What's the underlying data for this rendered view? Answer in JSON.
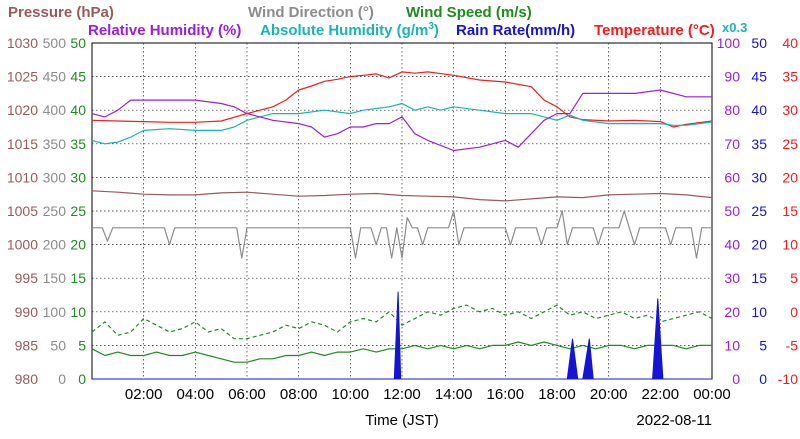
{
  "legend": {
    "row1": [
      {
        "text": "Pressure (hPa)",
        "color": "#9a5a5a"
      },
      {
        "text": "Wind Direction (°)",
        "color": "#8c8c8c"
      },
      {
        "text": "Wind Speed (m/s)",
        "color": "#1e8c1e"
      }
    ],
    "row2": [
      {
        "text": "Relative Humidity (%)",
        "color": "#9a1ee0"
      },
      {
        "text": "Absolute Humidity (g/m",
        "sup": "3",
        "tail": ")",
        "color": "#1ab4b4"
      },
      {
        "text": "Rain Rate(mm/h)",
        "color": "#1414d2"
      },
      {
        "text": "Temperature (°C)",
        "color": "#f01e1e"
      }
    ],
    "abs_multiplier": "x0.3"
  },
  "xlabel": "Time (JST)",
  "date": "2022-08-11",
  "chart_data": {
    "type": "line",
    "x_unit": "hours",
    "x_range": [
      0,
      24
    ],
    "x_ticks": [
      {
        "x": 2,
        "label": "02:00"
      },
      {
        "x": 4,
        "label": "04:00"
      },
      {
        "x": 6,
        "label": "06:00"
      },
      {
        "x": 8,
        "label": "08:00"
      },
      {
        "x": 10,
        "label": "10:00"
      },
      {
        "x": 12,
        "label": "12:00"
      },
      {
        "x": 14,
        "label": "14:00"
      },
      {
        "x": 16,
        "label": "16:00"
      },
      {
        "x": 18,
        "label": "18:00"
      },
      {
        "x": 20,
        "label": "20:00"
      },
      {
        "x": 22,
        "label": "22:00"
      },
      {
        "x": 24,
        "label": "00:00"
      }
    ],
    "axes": [
      {
        "name": "Pressure",
        "color": "#9a5a5a",
        "side": "left",
        "ticks": [
          "1030",
          "1025",
          "1020",
          "1015",
          "1010",
          "1005",
          "1000",
          "995",
          "990",
          "985",
          "980"
        ]
      },
      {
        "name": "Wind Direction",
        "color": "#8c8c8c",
        "side": "left",
        "ticks": [
          "500",
          "450",
          "400",
          "350",
          "300",
          "250",
          "200",
          "150",
          "100",
          "50",
          "0"
        ]
      },
      {
        "name": "Wind Speed",
        "color": "#1e8c1e",
        "side": "left",
        "ticks": [
          "50",
          "45",
          "40",
          "35",
          "30",
          "25",
          "20",
          "15",
          "10",
          "5",
          "0"
        ]
      },
      {
        "name": "Relative Humidity",
        "color": "#9a1ee0",
        "side": "right",
        "ticks": [
          "100",
          "90",
          "80",
          "70",
          "60",
          "50",
          "40",
          "30",
          "20",
          "10",
          "0"
        ]
      },
      {
        "name": "Rain Rate",
        "color": "#1414d2",
        "side": "right",
        "ticks": [
          "50",
          "45",
          "40",
          "35",
          "30",
          "25",
          "20",
          "15",
          "10",
          "5",
          "0"
        ]
      },
      {
        "name": "Temperature",
        "color": "#f01e1e",
        "side": "right",
        "ticks": [
          "40",
          "35",
          "30",
          "25",
          "20",
          "15",
          "10",
          "5",
          "0",
          "-5",
          "-10"
        ]
      }
    ],
    "series": [
      {
        "name": "Temperature",
        "unit": "°C",
        "color": "#f01e1e",
        "style": "solid",
        "axis": "Temperature",
        "x": [
          0,
          1,
          2,
          3,
          4,
          5,
          6,
          6.5,
          7,
          7.5,
          8,
          8.5,
          9,
          9.5,
          10,
          10.5,
          11,
          11.5,
          12,
          12.5,
          13,
          14,
          15,
          16,
          17,
          17.5,
          18,
          18.5,
          19,
          20,
          21,
          22,
          22.5,
          23,
          24
        ],
        "y": [
          28.5,
          28.4,
          28.3,
          28.2,
          28.2,
          28.4,
          29.5,
          30,
          30.5,
          31.5,
          33,
          33.6,
          34.3,
          34.6,
          35,
          35.2,
          35.4,
          34.8,
          35.7,
          35.5,
          35.7,
          35.2,
          34.5,
          34.2,
          33.5,
          31.5,
          30.5,
          29,
          28.6,
          28.4,
          28.5,
          28.3,
          27.5,
          27.9,
          28.4
        ]
      },
      {
        "name": "Absolute Humidity",
        "unit": "g/m3 x0.3",
        "color": "#1ab4b4",
        "style": "solid",
        "axis": "Relative Humidity",
        "x": [
          0,
          0.5,
          1,
          1.5,
          2,
          3,
          4,
          5,
          5.5,
          6,
          6.5,
          7,
          8,
          9,
          10,
          10.5,
          11,
          11.5,
          12,
          12.5,
          13,
          13.5,
          14,
          15,
          16,
          17,
          17.5,
          18,
          18.5,
          19,
          20,
          21,
          22,
          22.5,
          23,
          24
        ],
        "y": [
          71,
          70,
          70.5,
          72,
          74,
          74.5,
          74,
          74,
          75,
          77,
          78,
          79,
          79,
          80,
          79,
          80,
          80.5,
          81,
          82,
          80,
          81,
          80,
          81,
          80,
          79,
          79,
          78,
          77,
          78.5,
          77,
          76,
          76,
          76,
          75.5,
          75.5,
          76.5
        ]
      },
      {
        "name": "Relative Humidity",
        "unit": "%",
        "color": "#9a1ee0",
        "style": "solid",
        "axis": "Relative Humidity",
        "x": [
          0,
          0.5,
          1,
          1.5,
          2,
          3,
          4,
          5,
          5.5,
          6,
          7,
          8,
          8.5,
          9,
          9.5,
          10,
          10.5,
          11,
          11.5,
          12,
          12.5,
          13,
          14,
          15,
          16,
          16.5,
          17,
          17.5,
          18,
          18.5,
          19,
          20,
          21,
          22,
          23,
          24
        ],
        "y": [
          79,
          78,
          80,
          83,
          83,
          83,
          83,
          82,
          81,
          79,
          77,
          76,
          75,
          72,
          73,
          75,
          75,
          76,
          76,
          78,
          73,
          71,
          68,
          69,
          71,
          69,
          73,
          77,
          79,
          79,
          85,
          85,
          85,
          86,
          84,
          84
        ]
      },
      {
        "name": "Pressure",
        "unit": "hPa",
        "color": "#9a5a5a",
        "style": "solid",
        "axis": "Pressure",
        "x": [
          0,
          1,
          2,
          3,
          4,
          5,
          6,
          7,
          8,
          9,
          10,
          11,
          12,
          13,
          14,
          15,
          16,
          17,
          18,
          19,
          20,
          21,
          22,
          23,
          24
        ],
        "y": [
          1008,
          1007.8,
          1007.5,
          1007.4,
          1007.4,
          1007.7,
          1007.8,
          1007.5,
          1007.2,
          1007.3,
          1007.5,
          1007.6,
          1007.3,
          1007.2,
          1007.1,
          1006.7,
          1006.5,
          1006.8,
          1007.1,
          1007,
          1007.4,
          1007.5,
          1007.6,
          1007.4,
          1007
        ]
      },
      {
        "name": "Wind Direction",
        "unit": "°",
        "color": "#8c8c8c",
        "style": "solid",
        "axis": "Wind Direction",
        "x": [
          0,
          0.2,
          0.4,
          0.6,
          0.8,
          1,
          1.2,
          1.4,
          1.6,
          2,
          2.4,
          2.8,
          3,
          3.2,
          3.6,
          4,
          4.4,
          4.8,
          5,
          5.2,
          5.4,
          5.6,
          5.8,
          6,
          6.2,
          6.4,
          6.6,
          6.8,
          7,
          7.4,
          7.8,
          8,
          8.2,
          8.6,
          9,
          9.4,
          9.8,
          10,
          10.2,
          10.4,
          10.6,
          10.8,
          11,
          11.2,
          11.4,
          11.6,
          11.8,
          12,
          12.2,
          12.4,
          12.6,
          12.8,
          13,
          13.2,
          13.4,
          13.6,
          13.8,
          14,
          14.2,
          14.4,
          14.6,
          14.8,
          15,
          15.2,
          15.4,
          15.6,
          15.8,
          16,
          16.2,
          16.4,
          16.6,
          16.8,
          17,
          17.2,
          17.4,
          17.6,
          17.8,
          18,
          18.2,
          18.4,
          18.6,
          18.8,
          19,
          19.2,
          19.4,
          19.6,
          19.8,
          20,
          20.2,
          20.4,
          20.6,
          20.8,
          21,
          21.2,
          21.4,
          21.6,
          21.8,
          22,
          22.2,
          22.4,
          22.6,
          22.8,
          23,
          23.2,
          23.4,
          23.6,
          23.8,
          24
        ],
        "y": [
          225,
          225,
          225,
          205,
          225,
          225,
          225,
          225,
          225,
          225,
          225,
          225,
          200,
          225,
          225,
          225,
          225,
          225,
          225,
          225,
          225,
          225,
          180,
          225,
          225,
          225,
          225,
          225,
          225,
          225,
          225,
          225,
          225,
          225,
          225,
          225,
          225,
          225,
          180,
          225,
          225,
          225,
          200,
          225,
          225,
          180,
          225,
          180,
          240,
          225,
          225,
          200,
          225,
          225,
          225,
          225,
          225,
          250,
          200,
          225,
          225,
          225,
          225,
          225,
          225,
          225,
          225,
          225,
          200,
          225,
          225,
          225,
          225,
          225,
          200,
          225,
          225,
          225,
          250,
          200,
          225,
          225,
          225,
          225,
          225,
          200,
          225,
          225,
          225,
          225,
          250,
          225,
          200,
          225,
          225,
          225,
          225,
          225,
          225,
          200,
          225,
          225,
          225,
          225,
          180,
          225,
          225,
          225
        ]
      },
      {
        "name": "Wind Speed (gust)",
        "unit": "m/s",
        "color": "#1e8c1e",
        "style": "dashed",
        "axis": "Wind Speed",
        "x": [
          0,
          0.5,
          1,
          1.5,
          2,
          2.5,
          3,
          3.5,
          4,
          4.5,
          5,
          5.5,
          6,
          6.5,
          7,
          7.5,
          8,
          8.5,
          9,
          9.5,
          10,
          10.5,
          11,
          11.5,
          12,
          12.5,
          13,
          13.5,
          14,
          14.5,
          15,
          15.5,
          16,
          16.5,
          17,
          17.5,
          18,
          18.5,
          19,
          19.5,
          20,
          20.5,
          21,
          21.5,
          22,
          22.5,
          23,
          23.5,
          24
        ],
        "y": [
          7,
          8.5,
          6.5,
          7,
          9,
          8,
          7,
          7.5,
          8.5,
          7,
          7.5,
          6,
          6,
          6.5,
          7,
          8,
          7.5,
          8.5,
          8,
          7,
          8.5,
          9,
          8.5,
          10,
          8,
          9,
          10,
          9.5,
          10.5,
          11,
          10,
          10.5,
          9.5,
          10,
          9,
          10,
          11,
          9.5,
          10,
          9,
          9.5,
          10,
          9,
          9.5,
          8.5,
          9,
          9.5,
          10,
          9
        ]
      },
      {
        "name": "Wind Speed",
        "unit": "m/s",
        "color": "#1e8c1e",
        "style": "solid",
        "axis": "Wind Speed",
        "x": [
          0,
          0.5,
          1,
          1.5,
          2,
          2.5,
          3,
          3.5,
          4,
          4.5,
          5,
          5.5,
          6,
          6.5,
          7,
          7.5,
          8,
          8.5,
          9,
          9.5,
          10,
          10.5,
          11,
          11.5,
          12,
          12.5,
          13,
          13.5,
          14,
          14.5,
          15,
          15.5,
          16,
          16.5,
          17,
          17.5,
          18,
          18.5,
          19,
          19.5,
          20,
          20.5,
          21,
          21.5,
          22,
          22.5,
          23,
          23.5,
          24
        ],
        "y": [
          4.5,
          3.5,
          4,
          3.5,
          3.5,
          4,
          3.5,
          3.5,
          4,
          3.5,
          3,
          2.5,
          2.5,
          3,
          3,
          3.5,
          3.5,
          4,
          3.5,
          4,
          4,
          4.5,
          4,
          4.5,
          4.5,
          5,
          4.5,
          5,
          4.5,
          5,
          4.5,
          5,
          5,
          5.5,
          5,
          5.5,
          5,
          4.5,
          5,
          4.5,
          5,
          5,
          4.5,
          5,
          5,
          5,
          4.5,
          5,
          5
        ]
      },
      {
        "name": "Rain Rate",
        "unit": "mm/h",
        "color": "#1414d2",
        "style": "filled",
        "axis": "Rain Rate",
        "x": [
          0,
          11.7,
          11.85,
          11.95,
          12.05,
          18.4,
          18.6,
          18.8,
          19.0,
          19.25,
          19.4,
          21.7,
          21.9,
          22.1,
          24
        ],
        "y": [
          0,
          0,
          13,
          0,
          0,
          0,
          6,
          0,
          0,
          6,
          0,
          0,
          12,
          0,
          0
        ]
      }
    ]
  }
}
